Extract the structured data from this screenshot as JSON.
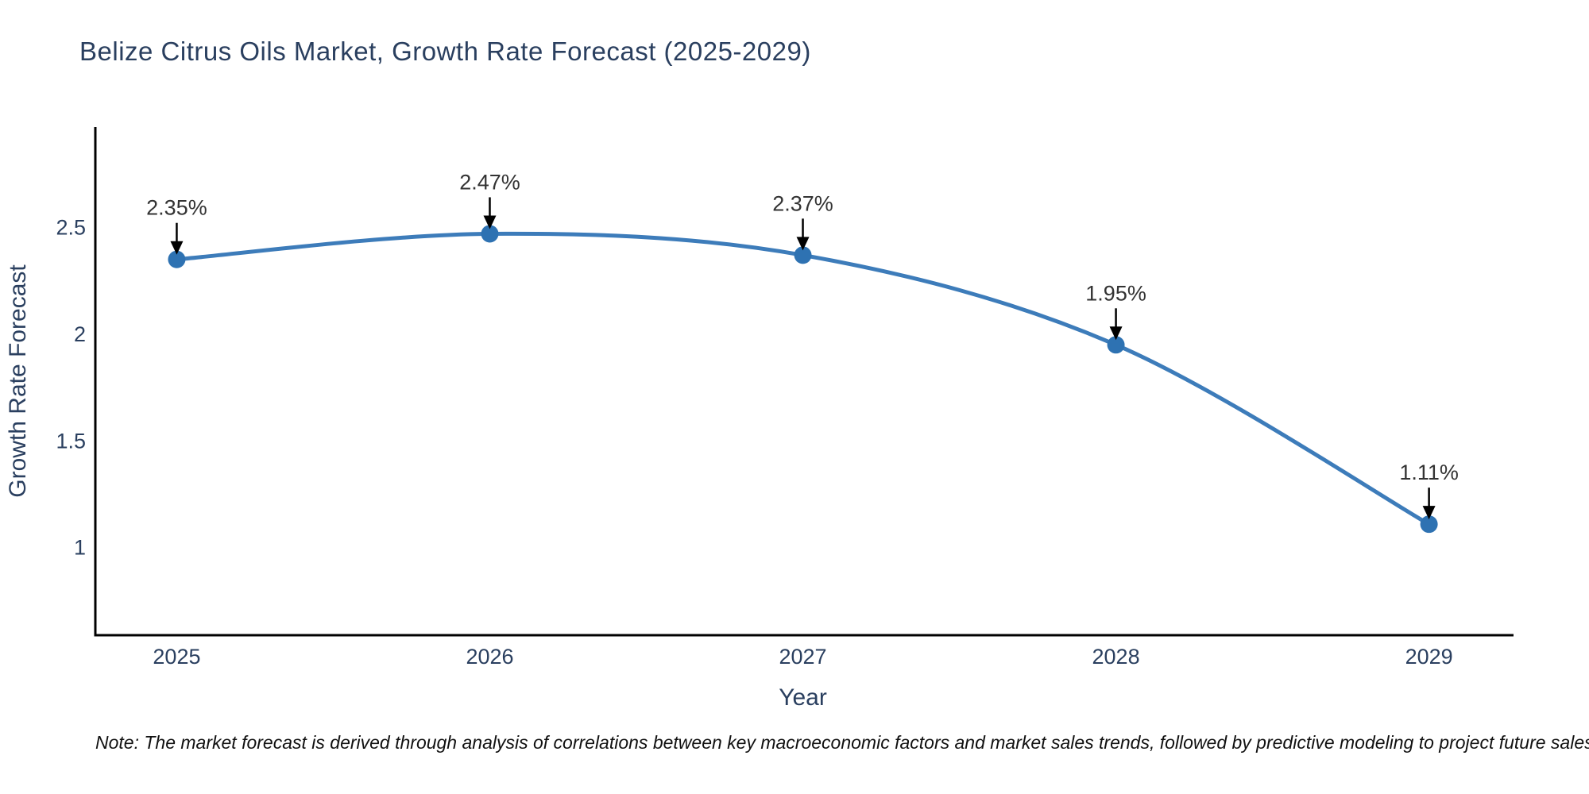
{
  "title": "Belize Citrus Oils Market, Growth Rate Forecast (2025-2029)",
  "note": "Note: The market forecast is derived through analysis of correlations between key macroeconomic factors and market sales trends, followed by predictive modeling to project future sales",
  "chart_data": {
    "type": "line",
    "title": "Belize Citrus Oils Market, Growth Rate Forecast (2025-2029)",
    "xlabel": "Year",
    "ylabel": "Growth Rate Forecast",
    "x": [
      2025,
      2026,
      2027,
      2028,
      2029
    ],
    "values": [
      2.35,
      2.47,
      2.37,
      1.95,
      1.11
    ],
    "point_labels": [
      "2.35%",
      "2.47%",
      "2.37%",
      "1.95%",
      "1.11%"
    ],
    "x_tick_labels": [
      "2025",
      "2026",
      "2027",
      "2028",
      "2029"
    ],
    "y_ticks": [
      1,
      1.5,
      2,
      2.5
    ],
    "y_tick_labels": [
      "1",
      "1.5",
      "2",
      "2.5"
    ],
    "xlim": [
      2024.74,
      2029.27
    ],
    "ylim": [
      0.59,
      2.97
    ],
    "grid": false,
    "legend": "none",
    "line_shape": "spline",
    "colors": {
      "line": "#3d7cba",
      "marker": "#2e72b2",
      "arrow": "#000000",
      "annotation_text": "#333333",
      "axis_line": "#000000",
      "tick_text": "#2a3f5f",
      "axis_title_text": "#2a3f5f",
      "title_text": "#2a3f5f",
      "note_text": "#111111"
    }
  }
}
